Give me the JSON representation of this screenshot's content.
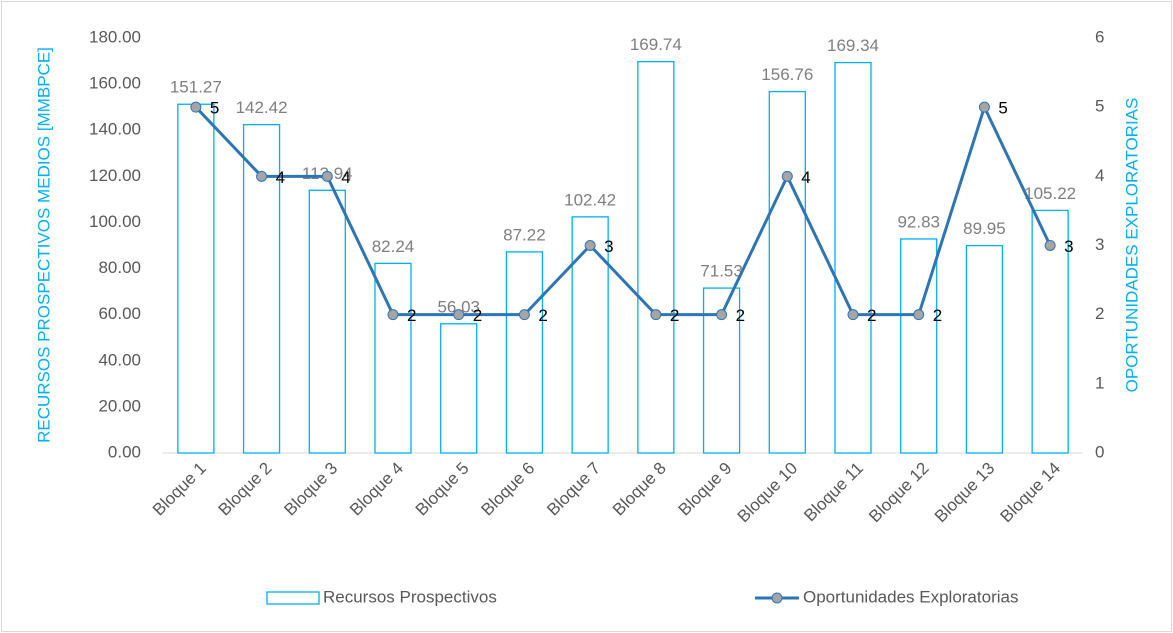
{
  "chart_data": {
    "type": "combo",
    "categories": [
      "Bloque 1",
      "Bloque 2",
      "Bloque 3",
      "Bloque 4",
      "Bloque 5",
      "Bloque 6",
      "Bloque 7",
      "Bloque 8",
      "Bloque 9",
      "Bloque 10",
      "Bloque 11",
      "Bloque 12",
      "Bloque 13",
      "Bloque 14"
    ],
    "series": [
      {
        "name": "Recursos Prospectivos",
        "type": "bar",
        "color": "#00b0f0",
        "values": [
          151.27,
          142.42,
          113.94,
          82.24,
          56.03,
          87.22,
          102.42,
          169.74,
          71.53,
          156.76,
          169.34,
          92.83,
          89.95,
          105.22
        ]
      },
      {
        "name": "Oportunidades Exploratorias",
        "type": "line",
        "axis": "y2",
        "color": "#2e75b6",
        "marker_color": "#a5a5a5",
        "values": [
          5,
          4,
          4,
          2,
          2,
          2,
          3,
          2,
          2,
          4,
          2,
          2,
          5,
          3
        ]
      }
    ],
    "ylabel": "RECURSOS PROSPECTIVOS MEDIOS [MMBPCE]",
    "y2label": "OPORTUNIDADES EXPLORATORIAS",
    "ylim": [
      0,
      180
    ],
    "yticks": [
      {
        "value": 0,
        "label": "0.00"
      },
      {
        "value": 20,
        "label": "20.00"
      },
      {
        "value": 40,
        "label": "40.00"
      },
      {
        "value": 60,
        "label": "60.00"
      },
      {
        "value": 80,
        "label": "80.00"
      },
      {
        "value": 100,
        "label": "100.00"
      },
      {
        "value": 120,
        "label": "120.00"
      },
      {
        "value": 140,
        "label": "140.00"
      },
      {
        "value": 160,
        "label": "160.00"
      },
      {
        "value": 180,
        "label": "180.00"
      }
    ],
    "y2lim": [
      0,
      6
    ],
    "y2ticks": [
      0,
      1,
      2,
      3,
      4,
      5,
      6
    ],
    "grid": false,
    "legend": "bottom"
  }
}
